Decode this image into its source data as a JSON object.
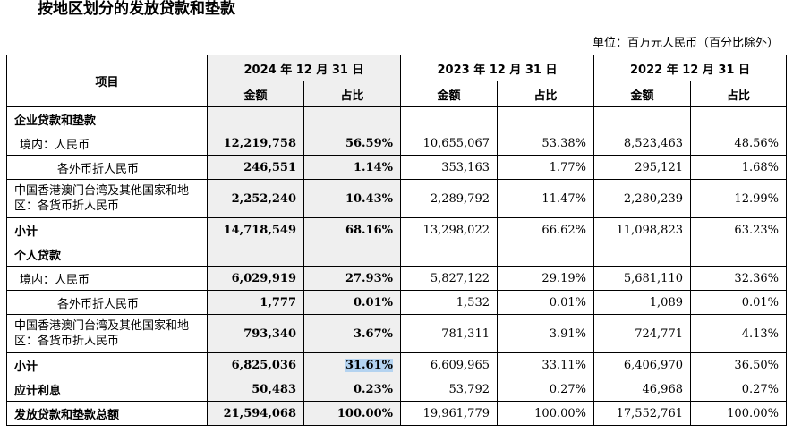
{
  "title": "按地区划分的发放贷款和垫款",
  "unit": "单位：百万元人民币（百分比除外）",
  "header": {
    "item": "项目",
    "periods": [
      "2024 年 12 月 31 日",
      "2023 年 12 月 31 日",
      "2022 年 12 月 31 日"
    ],
    "amount": "金额",
    "ratio": "占比"
  },
  "rows": [
    {
      "label": "企业贷款和垫款",
      "type": "section"
    },
    {
      "label": "境内：人民币",
      "type": "item1",
      "v": [
        "12,219,758",
        "56.59%",
        "10,655,067",
        "53.38%",
        "8,523,463",
        "48.56%"
      ]
    },
    {
      "label": "各外币折人民币",
      "type": "item2",
      "v": [
        "246,551",
        "1.14%",
        "353,163",
        "1.77%",
        "295,121",
        "1.68%"
      ]
    },
    {
      "label": "中国香港澳门台湾及其他国家和地区：各货币折人民币",
      "type": "item3",
      "v": [
        "2,252,240",
        "10.43%",
        "2,289,792",
        "11.47%",
        "2,280,239",
        "12.99%"
      ]
    },
    {
      "label": "小计",
      "type": "subtotal",
      "v": [
        "14,718,549",
        "68.16%",
        "13,298,022",
        "66.62%",
        "11,098,823",
        "63.23%"
      ]
    },
    {
      "label": "个人贷款",
      "type": "section"
    },
    {
      "label": "境内：人民币",
      "type": "item1",
      "v": [
        "6,029,919",
        "27.93%",
        "5,827,122",
        "29.19%",
        "5,681,110",
        "32.36%"
      ]
    },
    {
      "label": "各外币折人民币",
      "type": "item2",
      "v": [
        "1,777",
        "0.01%",
        "1,532",
        "0.01%",
        "1,089",
        "0.01%"
      ]
    },
    {
      "label": "中国香港澳门台湾及其他国家和地区：各货币折人民币",
      "type": "item3",
      "v": [
        "793,340",
        "3.67%",
        "781,311",
        "3.91%",
        "724,771",
        "4.13%"
      ]
    },
    {
      "label": "小计",
      "type": "subtotal",
      "v": [
        "6,825,036",
        "31.61%",
        "6,609,965",
        "33.11%",
        "6,406,970",
        "36.50%"
      ],
      "highlight": 1
    },
    {
      "label": "应计利息",
      "type": "subtotal",
      "v": [
        "50,483",
        "0.23%",
        "53,792",
        "0.27%",
        "46,968",
        "0.27%"
      ]
    },
    {
      "label": "发放贷款和垫款总额",
      "type": "subtotal",
      "v": [
        "21,594,068",
        "100.00%",
        "19,961,779",
        "100.00%",
        "17,552,761",
        "100.00%"
      ]
    }
  ]
}
